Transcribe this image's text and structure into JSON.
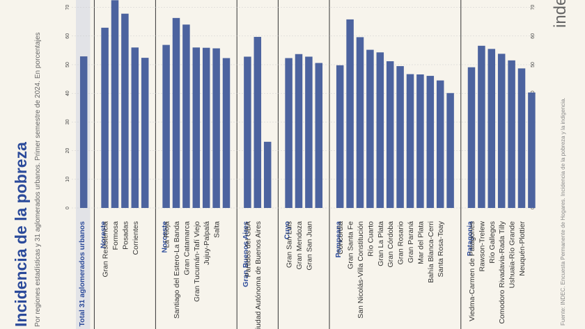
{
  "page": {
    "title": "Incidencia de la pobreza",
    "subtitle": "Por regiones estadísticas y 31 aglomerados urbanos. Primer semestre de 2024. En porcentajes",
    "source": "Fuente: INDEC. Encuesta Permanente de Hogares. Incidencia de la pobreza y la indigencia.",
    "logo": "indec"
  },
  "colors": {
    "bar": "#4c639f",
    "total_band": "#dcdfe6",
    "separator": "#333333",
    "group_label": "#2b4a9a"
  },
  "chart_data": {
    "type": "bar",
    "orientation": "rotated 90° clockwise",
    "ylim": [
      0,
      70
    ],
    "ticks": [
      0,
      10,
      20,
      30,
      40,
      50,
      60,
      70
    ],
    "groups": [
      {
        "name": "Total 31 aglomerados urbanos",
        "label": "Total 31 aglomerados urbanos",
        "highlight": true,
        "items": [
          {
            "name": "",
            "value": 52.9
          }
        ]
      },
      {
        "name": "Noreste",
        "label": "Noreste",
        "items": [
          {
            "name": "Gran Resistencia",
            "value": 62.9
          },
          {
            "name": "Formosa",
            "value": 72.5
          },
          {
            "name": "Posadas",
            "value": 67.8
          },
          {
            "name": "Corrientes",
            "value": 56.0
          },
          {
            "name": "",
            "value": 52.4
          }
        ]
      },
      {
        "name": "Noroeste",
        "label": "Noroeste",
        "items": [
          {
            "name": "La Rioja",
            "value": 56.9
          },
          {
            "name": "Santiago del Estero-La Banda",
            "value": 66.3
          },
          {
            "name": "Gran Catamarca",
            "value": 64.0
          },
          {
            "name": "Gran Tucumán-Tafí Viejo",
            "value": 56.0
          },
          {
            "name": "Jujuy-Palpalá",
            "value": 55.9
          },
          {
            "name": "Salta",
            "value": 55.7
          },
          {
            "name": "",
            "value": 52.3
          }
        ]
      },
      {
        "name": "Gran Buenos Aires",
        "label": "Gran Buenos Aires",
        "items": [
          {
            "name": "Partidos del GBA",
            "value": 52.8
          },
          {
            "name": "Ciudad Autónoma de Buenos Aires",
            "value": 59.7
          },
          {
            "name": "",
            "value": 23.1
          }
        ]
      },
      {
        "name": "Cuyo",
        "label": "Cuyo",
        "items": [
          {
            "name": "Gran San Luis",
            "value": 52.3
          },
          {
            "name": "Gran Mendoza",
            "value": 53.7
          },
          {
            "name": "Gran San Juan",
            "value": 52.8
          },
          {
            "name": "",
            "value": 50.6
          }
        ]
      },
      {
        "name": "Pampeana",
        "label": "Pampeana",
        "items": [
          {
            "name": "Concordia",
            "value": 49.8
          },
          {
            "name": "Gran Santa Fe",
            "value": 65.8
          },
          {
            "name": "San Nicolás-Villa Constitución",
            "value": 59.6
          },
          {
            "name": "Río Cuarto",
            "value": 55.2
          },
          {
            "name": "Gran La Plata",
            "value": 54.3
          },
          {
            "name": "Gran Córdoba",
            "value": 51.2
          },
          {
            "name": "Gran Rosario",
            "value": 49.5
          },
          {
            "name": "Gran Paraná",
            "value": 46.7
          },
          {
            "name": "Mar del Plata",
            "value": 46.6
          },
          {
            "name": "Bahía Blanca-Cerri",
            "value": 46.1
          },
          {
            "name": "Santa Rosa-Toay",
            "value": 44.5
          },
          {
            "name": "",
            "value": 40.1
          }
        ]
      },
      {
        "name": "Patagonia",
        "label": "Patagonia",
        "items": [
          {
            "name": "Viedma-Carmen de Patagones",
            "value": 49.1
          },
          {
            "name": "Rawson-Trelew",
            "value": 56.6
          },
          {
            "name": "Río Gallegos",
            "value": 55.5
          },
          {
            "name": "Comodoro Rivadavia-Rada Tilly",
            "value": 53.8
          },
          {
            "name": "Ushuaia-Río Grande",
            "value": 51.5
          },
          {
            "name": "Neuquén-Plottier",
            "value": 48.7
          },
          {
            "name": "",
            "value": 40.3
          }
        ]
      }
    ]
  }
}
